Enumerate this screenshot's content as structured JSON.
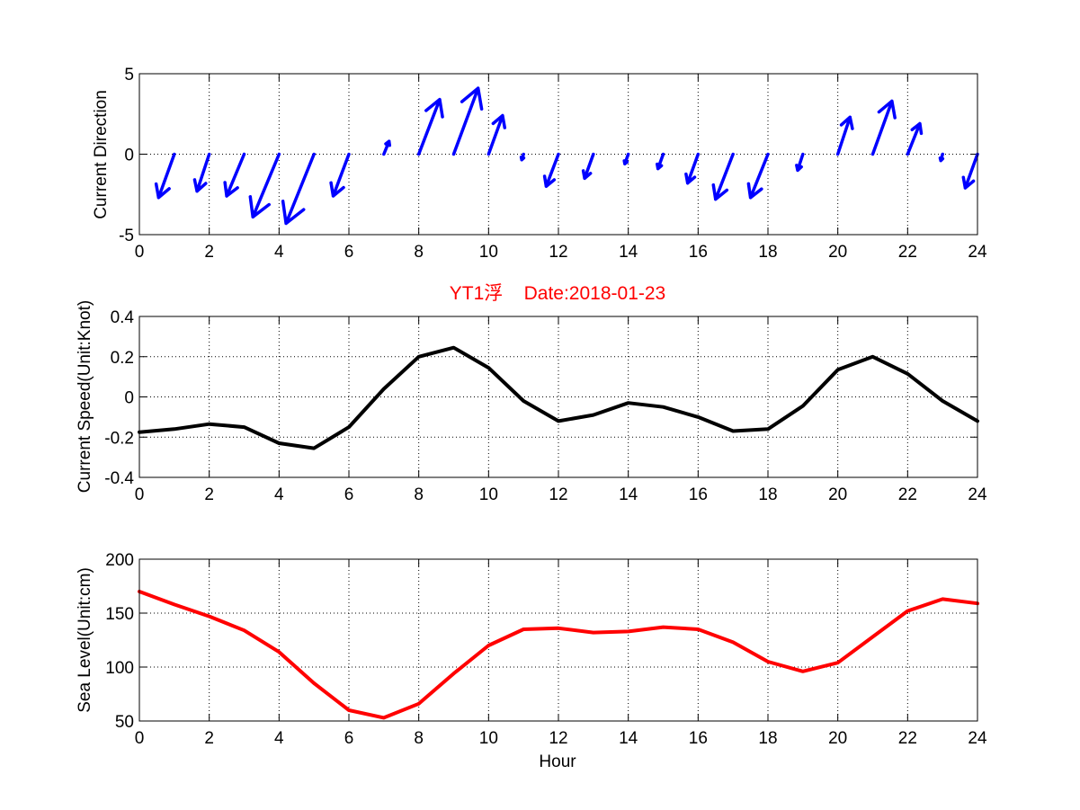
{
  "chart_data": [
    {
      "type": "quiver",
      "title": "",
      "xlabel": "",
      "ylabel": "Current Direction",
      "xlim": [
        0,
        24
      ],
      "ylim": [
        -5,
        5
      ],
      "xticks": [
        0,
        2,
        4,
        6,
        8,
        10,
        12,
        14,
        16,
        18,
        20,
        22,
        24
      ],
      "yticks": [
        -5,
        0,
        5
      ],
      "grid": true,
      "color": "#0000ff",
      "vectors": [
        {
          "x": 0,
          "u": -0.45,
          "v": -2.7
        },
        {
          "x": 1,
          "u": -0.35,
          "v": -2.3
        },
        {
          "x": 2,
          "u": -0.5,
          "v": -2.6
        },
        {
          "x": 3,
          "u": -0.75,
          "v": -3.9
        },
        {
          "x": 4,
          "u": -0.8,
          "v": -4.3
        },
        {
          "x": 5,
          "u": -0.45,
          "v": -2.6
        },
        {
          "x": 6,
          "u": 0.15,
          "v": 0.8
        },
        {
          "x": 7,
          "u": 0.6,
          "v": 3.4
        },
        {
          "x": 8,
          "u": 0.7,
          "v": 4.1
        },
        {
          "x": 9,
          "u": 0.4,
          "v": 2.4
        },
        {
          "x": 10,
          "u": -0.05,
          "v": -0.35
        },
        {
          "x": 11,
          "u": -0.35,
          "v": -2.0
        },
        {
          "x": 12,
          "u": -0.25,
          "v": -1.5
        },
        {
          "x": 13,
          "u": -0.1,
          "v": -0.6
        },
        {
          "x": 14,
          "u": -0.15,
          "v": -0.9
        },
        {
          "x": 15,
          "u": -0.3,
          "v": -1.8
        },
        {
          "x": 16,
          "u": -0.5,
          "v": -2.8
        },
        {
          "x": 17,
          "u": -0.5,
          "v": -2.7
        },
        {
          "x": 18,
          "u": -0.15,
          "v": -1.0
        },
        {
          "x": 19,
          "u": 0.35,
          "v": 2.3
        },
        {
          "x": 20,
          "u": 0.55,
          "v": 3.3
        },
        {
          "x": 21,
          "u": 0.35,
          "v": 1.9
        },
        {
          "x": 22,
          "u": -0.05,
          "v": -0.4
        },
        {
          "x": 23,
          "u": -0.35,
          "v": -2.1
        }
      ]
    },
    {
      "type": "line",
      "title": "YT1浮    Date:2018-01-23",
      "xlabel": "",
      "ylabel": "Current Speed(Unit:Knot)",
      "xlim": [
        0,
        24
      ],
      "ylim": [
        -0.4,
        0.4
      ],
      "xticks": [
        0,
        2,
        4,
        6,
        8,
        10,
        12,
        14,
        16,
        18,
        20,
        22,
        24
      ],
      "yticks": [
        -0.4,
        -0.2,
        0,
        0.2,
        0.4
      ],
      "grid": true,
      "series": [
        {
          "color": "#000000",
          "x": [
            0,
            1,
            2,
            3,
            4,
            5,
            6,
            7,
            8,
            9,
            10,
            11,
            12,
            13,
            14,
            15,
            16,
            17,
            18,
            19,
            20,
            21,
            22,
            23,
            24
          ],
          "values": [
            -0.175,
            -0.16,
            -0.135,
            -0.15,
            -0.23,
            -0.255,
            -0.15,
            0.04,
            0.2,
            0.245,
            0.145,
            -0.02,
            -0.12,
            -0.09,
            -0.03,
            -0.05,
            -0.1,
            -0.17,
            -0.16,
            -0.045,
            0.135,
            0.2,
            0.115,
            -0.02,
            -0.12
          ]
        }
      ]
    },
    {
      "type": "line",
      "title": "",
      "xlabel": "Hour",
      "ylabel": "Sea Level(Unit:cm)",
      "xlim": [
        0,
        24
      ],
      "ylim": [
        50,
        200
      ],
      "xticks": [
        0,
        2,
        4,
        6,
        8,
        10,
        12,
        14,
        16,
        18,
        20,
        22,
        24
      ],
      "yticks": [
        50,
        100,
        150,
        200
      ],
      "grid": true,
      "series": [
        {
          "color": "#ff0000",
          "x": [
            0,
            1,
            2,
            3,
            4,
            5,
            6,
            7,
            8,
            9,
            10,
            11,
            12,
            13,
            14,
            15,
            16,
            17,
            18,
            19,
            20,
            21,
            22,
            23,
            24
          ],
          "values": [
            170,
            158,
            147,
            134,
            114,
            85,
            60,
            53,
            66,
            94,
            120,
            135,
            136,
            132,
            133,
            137,
            135,
            123,
            105,
            96,
            104,
            128,
            152,
            163,
            159
          ]
        }
      ]
    }
  ]
}
